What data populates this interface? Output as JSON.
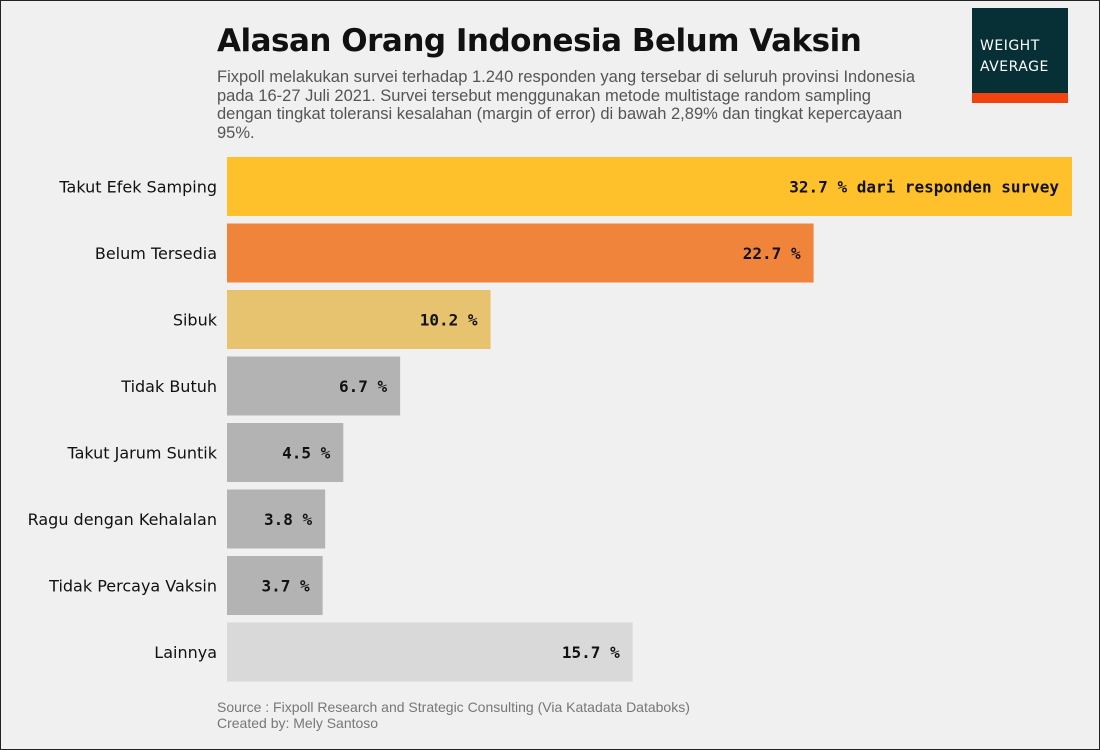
{
  "header": {
    "title": "Alasan Orang Indonesia Belum Vaksin",
    "subtitle": "Fixpoll melakukan survei terhadap 1.240 responden yang tersebar di seluruh provinsi Indonesia pada 16-27 Juli 2021. Survei tersebut menggunakan metode multistage random sampling dengan tingkat toleransi kesalahan (margin of error) di bawah 2,89% dan tingkat kepercayaan 95%."
  },
  "logo": {
    "line1": "WEIGHT",
    "line2": "AVERAGE"
  },
  "chart_data": {
    "type": "bar",
    "orientation": "horizontal",
    "categories": [
      "Takut Efek Samping",
      "Belum Tersedia",
      "Sibuk",
      "Tidak Butuh",
      "Takut Jarum Suntik",
      "Ragu dengan Kehalalan",
      "Tidak Percaya Vaksin",
      "Lainnya"
    ],
    "values": [
      32.7,
      22.7,
      10.2,
      6.7,
      4.5,
      3.8,
      3.7,
      15.7
    ],
    "value_labels": [
      "32.7 % dari responden survey",
      "22.7 %",
      "10.2 %",
      "6.7 %",
      "4.5 %",
      "3.8 %",
      "3.7 %",
      "15.7 %"
    ],
    "colors": [
      "#ffc12b",
      "#f0843a",
      "#e8c36f",
      "#b3b3b3",
      "#b3b3b3",
      "#b3b3b3",
      "#b3b3b3",
      "#d9d9d9"
    ],
    "xlim": [
      0,
      32.7
    ],
    "grid": false,
    "legend": "none",
    "title": "Alasan Orang Indonesia Belum Vaksin",
    "xlabel": "",
    "ylabel": ""
  },
  "footer": {
    "source": "Source : Fixpoll Research and Strategic Consulting (Via Katadata Databoks)",
    "created_by": "Created by: Mely Santoso"
  }
}
